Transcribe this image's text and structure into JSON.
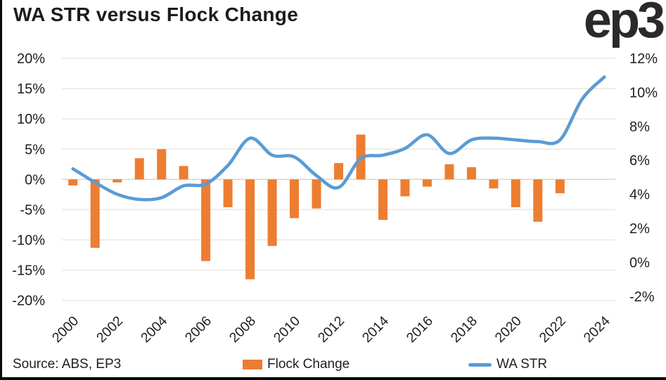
{
  "header": {
    "title": "WA STR versus Flock Change",
    "logo": "ep3"
  },
  "footer": {
    "source": "Source: ABS, EP3"
  },
  "legend": [
    {
      "label": "Flock Change",
      "type": "bar",
      "color": "#ED7D31"
    },
    {
      "label": "WA STR",
      "type": "line",
      "color": "#5B9BD5"
    }
  ],
  "colors": {
    "bar": "#ED7D31",
    "line": "#5B9BD5",
    "grid": "#EAE8DE",
    "zero_line": "#D8D6CC",
    "axis_text": "#1f1f1f",
    "frame": "#0a0a0a"
  },
  "chart_data": {
    "type": "bar+line",
    "title": "WA STR versus Flock Change",
    "x": [
      2000,
      2001,
      2002,
      2003,
      2004,
      2005,
      2006,
      2007,
      2008,
      2009,
      2010,
      2011,
      2012,
      2013,
      2014,
      2015,
      2016,
      2017,
      2018,
      2019,
      2020,
      2021,
      2022,
      2023,
      2024
    ],
    "series": [
      {
        "name": "Flock Change",
        "type": "bar",
        "axis": "left",
        "values": [
          -1.0,
          -11.3,
          -0.5,
          3.5,
          5.0,
          2.2,
          -13.5,
          -4.6,
          -16.5,
          -11.0,
          -6.4,
          -4.8,
          2.7,
          7.4,
          -6.7,
          -2.8,
          -1.2,
          2.5,
          2.0,
          -1.5,
          -4.6,
          -7.0,
          -2.3,
          null,
          null
        ]
      },
      {
        "name": "WA STR",
        "type": "line",
        "axis": "right",
        "values": [
          5.5,
          4.7,
          4.0,
          3.7,
          3.8,
          4.5,
          4.6,
          5.7,
          7.3,
          6.3,
          6.2,
          5.1,
          4.4,
          6.1,
          6.3,
          6.7,
          7.5,
          6.4,
          7.2,
          7.3,
          7.2,
          7.1,
          7.2,
          9.6,
          10.9
        ]
      }
    ],
    "left_axis": {
      "lim": [
        -20,
        20
      ],
      "tick_values": [
        20,
        15,
        10,
        5,
        0,
        -5,
        -10,
        -15,
        -20
      ],
      "tick_labels": [
        "20%",
        "15%",
        "10%",
        "5%",
        "0%",
        "-5%",
        "-10%",
        "-15%",
        "-20%"
      ]
    },
    "right_axis": {
      "lim": [
        -2,
        12
      ],
      "tick_values": [
        12,
        10,
        8,
        6,
        4,
        2,
        0,
        -2
      ],
      "tick_labels": [
        "12%",
        "10%",
        "8%",
        "6%",
        "4%",
        "2%",
        "0%",
        "-2%"
      ]
    },
    "x_tick_years": [
      2000,
      2002,
      2004,
      2006,
      2008,
      2010,
      2012,
      2014,
      2016,
      2018,
      2020,
      2022,
      2024
    ],
    "grid": true,
    "legend_position": "bottom"
  }
}
